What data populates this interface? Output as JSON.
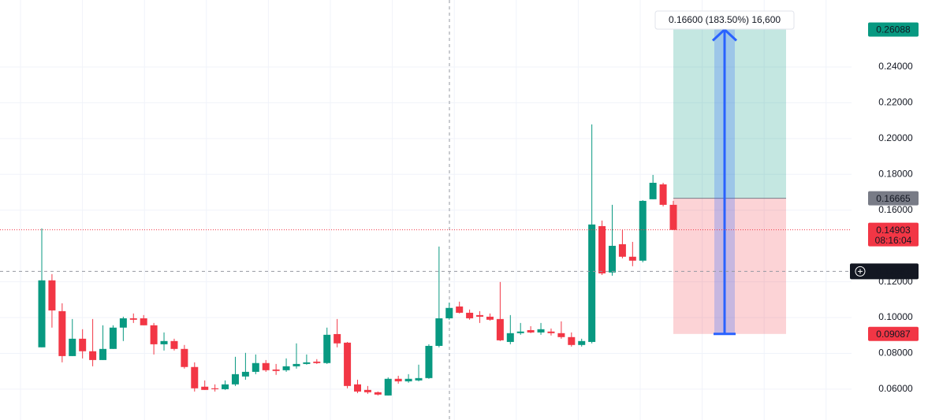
{
  "chart_data": {
    "type": "candlestick",
    "up_color": "#089981",
    "down_color": "#f23645",
    "open": [
      0.0834,
      0.1208,
      0.1036,
      0.0785,
      0.0882,
      0.0812,
      0.0763,
      0.0825,
      0.0944,
      0.0996,
      0.0996,
      0.0957,
      0.0851,
      0.0869,
      0.0825,
      0.0724,
      0.0614,
      0.0605,
      0.06,
      0.0627,
      0.0671,
      0.0697,
      0.0746,
      0.071,
      0.0706,
      0.0728,
      0.0741,
      0.0754,
      0.0746,
      0.0908,
      0.086,
      0.0627,
      0.0596,
      0.0583,
      0.0565,
      0.0658,
      0.0644,
      0.0649,
      0.0662,
      0.0842,
      0.0996,
      0.1062,
      0.1027,
      0.1014,
      0.1005,
      0.0992,
      0.0864,
      0.0913,
      0.093,
      0.0917,
      0.0922,
      0.0913,
      0.0891,
      0.0847,
      0.0864,
      0.1511,
      0.1252,
      0.141,
      0.134,
      0.1318,
      0.1661,
      0.1744,
      0.163
    ],
    "high": [
      0.1498,
      0.1243,
      0.108,
      0.0992,
      0.0935,
      0.0992,
      0.0957,
      0.0957,
      0.1005,
      0.1023,
      0.1014,
      0.097,
      0.0917,
      0.0882,
      0.0847,
      0.075,
      0.0649,
      0.0627,
      0.0649,
      0.0781,
      0.0803,
      0.0794,
      0.0763,
      0.0741,
      0.0772,
      0.0856,
      0.0794,
      0.0768,
      0.0944,
      0.0992,
      0.0864,
      0.0653,
      0.0618,
      0.0587,
      0.0666,
      0.0675,
      0.0684,
      0.0737,
      0.0851,
      0.1397,
      0.1084,
      0.1089,
      0.1045,
      0.1036,
      0.1023,
      0.1199,
      0.1014,
      0.097,
      0.0952,
      0.097,
      0.0939,
      0.0979,
      0.0917,
      0.0882,
      0.2079,
      0.1542,
      0.163,
      0.1489,
      0.1423,
      0.1656,
      0.1797,
      0.1753,
      0.1652
    ],
    "low": [
      0.0834,
      0.0944,
      0.075,
      0.0785,
      0.0772,
      0.0728,
      0.0763,
      0.0825,
      0.0869,
      0.097,
      0.0957,
      0.0794,
      0.0816,
      0.0816,
      0.0715,
      0.0587,
      0.0596,
      0.0587,
      0.0596,
      0.0618,
      0.0653,
      0.0684,
      0.0697,
      0.068,
      0.0697,
      0.0715,
      0.0737,
      0.0741,
      0.0741,
      0.0834,
      0.0605,
      0.0578,
      0.0574,
      0.0565,
      0.0565,
      0.0631,
      0.0636,
      0.0644,
      0.0658,
      0.0834,
      0.0988,
      0.1023,
      0.0988,
      0.097,
      0.0983,
      0.0869,
      0.0851,
      0.0904,
      0.0913,
      0.0904,
      0.09,
      0.0882,
      0.0838,
      0.0838,
      0.0856,
      0.1238,
      0.1234,
      0.1331,
      0.1287,
      0.1309,
      0.1661,
      0.1621,
      0.149
    ],
    "close": [
      0.1208,
      0.104,
      0.0785,
      0.0882,
      0.0812,
      0.0763,
      0.0825,
      0.0944,
      0.0996,
      0.0988,
      0.0957,
      0.0851,
      0.0869,
      0.0825,
      0.0724,
      0.0605,
      0.0596,
      0.06,
      0.0627,
      0.0684,
      0.0697,
      0.0746,
      0.0706,
      0.0702,
      0.0728,
      0.0741,
      0.075,
      0.0746,
      0.0904,
      0.0856,
      0.0618,
      0.0587,
      0.0583,
      0.057,
      0.0658,
      0.0644,
      0.0658,
      0.0662,
      0.0842,
      0.0996,
      0.1054,
      0.1027,
      0.0996,
      0.1005,
      0.0988,
      0.0873,
      0.0913,
      0.0922,
      0.0917,
      0.0935,
      0.0913,
      0.0891,
      0.0847,
      0.0869,
      0.152,
      0.1247,
      0.1401,
      0.134,
      0.1318,
      0.1652,
      0.1753,
      0.163,
      0.149
    ],
    "ylim": [
      0.0428,
      0.2774
    ],
    "yticks": [
      {
        "value": 0.06,
        "label": "0.06000"
      },
      {
        "value": 0.08,
        "label": "0.08000"
      },
      {
        "value": 0.1,
        "label": "0.10000"
      },
      {
        "value": 0.12,
        "label": "0.12000"
      },
      {
        "value": 0.16,
        "label": "0.16000"
      },
      {
        "value": 0.18,
        "label": "0.18000"
      },
      {
        "value": 0.2,
        "label": "0.20000"
      },
      {
        "value": 0.22,
        "label": "0.22000"
      },
      {
        "value": 0.24,
        "label": "0.24000"
      }
    ],
    "grid": true,
    "last_price": 0.14903,
    "countdown": "08:16:04",
    "crosshair_price": 0.12581,
    "position": {
      "entry": 0.16665,
      "target": 0.26088,
      "stop": 0.09087,
      "label": "0.16600 (183.50%) 16,600"
    }
  }
}
